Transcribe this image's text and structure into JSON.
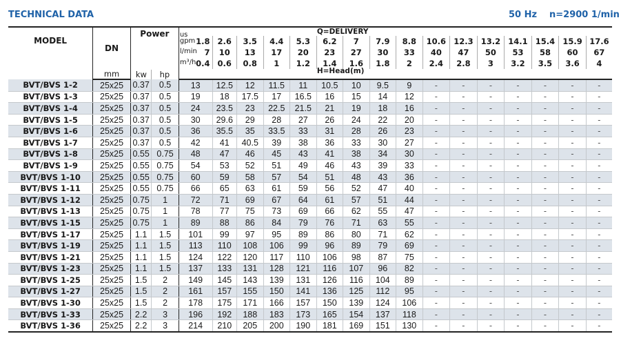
{
  "title": "TECHNICAL DATA",
  "frequency": "50 Hz",
  "speed": "n=2900 1/min",
  "header": {
    "model": "MODEL",
    "dn": "DN",
    "dn_unit": "mm",
    "power": "Power",
    "kw": "kw",
    "hp": "hp",
    "delivery": "Q=DELIVERY",
    "head": "H=Head(m)",
    "gpm_label": "us gpm",
    "lmin_label": "l/min",
    "m3h_label": "m³/h",
    "gpm": [
      "1.8",
      "2.6",
      "3.5",
      "4.4",
      "5.3",
      "6.2",
      "7",
      "7.9",
      "8.8",
      "10.6",
      "12.3",
      "13.2",
      "14.1",
      "15.4",
      "15.9",
      "17.6"
    ],
    "lmin": [
      "7",
      "10",
      "13",
      "17",
      "20",
      "23",
      "27",
      "30",
      "33",
      "40",
      "47",
      "50",
      "53",
      "58",
      "60",
      "67"
    ],
    "m3h": [
      "0.4",
      "0.6",
      "0.8",
      "1",
      "1.2",
      "1.4",
      "1.6",
      "1.8",
      "2",
      "2.4",
      "2.8",
      "3",
      "3.2",
      "3.5",
      "3.6",
      "4"
    ]
  },
  "rows": [
    {
      "model": "BVT/BVS 1-2",
      "dn": "25x25",
      "kw": "0.37",
      "hp": "0.5",
      "head": [
        "13",
        "12.5",
        "12",
        "11.5",
        "11",
        "10.5",
        "10",
        "9.5",
        "9",
        "-",
        "-",
        "-",
        "-",
        "-",
        "-",
        "-"
      ]
    },
    {
      "model": "BVT/BVS 1-3",
      "dn": "25x25",
      "kw": "0.37",
      "hp": "0.5",
      "head": [
        "19",
        "18",
        "17.5",
        "17",
        "16.5",
        "16",
        "15",
        "14",
        "12",
        "-",
        "-",
        "-",
        "-",
        "-",
        "-",
        "-"
      ]
    },
    {
      "model": "BVT/BVS 1-4",
      "dn": "25x25",
      "kw": "0.37",
      "hp": "0.5",
      "head": [
        "24",
        "23.5",
        "23",
        "22.5",
        "21.5",
        "21",
        "19",
        "18",
        "16",
        "-",
        "-",
        "-",
        "-",
        "-",
        "-",
        "-"
      ]
    },
    {
      "model": "BVT/BVS 1-5",
      "dn": "25x25",
      "kw": "0.37",
      "hp": "0.5",
      "head": [
        "30",
        "29.6",
        "29",
        "28",
        "27",
        "26",
        "24",
        "22",
        "20",
        "-",
        "-",
        "-",
        "-",
        "-",
        "-",
        "-"
      ]
    },
    {
      "model": "BVT/BVS 1-6",
      "dn": "25x25",
      "kw": "0.37",
      "hp": "0.5",
      "head": [
        "36",
        "35.5",
        "35",
        "33.5",
        "33",
        "31",
        "28",
        "26",
        "23",
        "-",
        "-",
        "-",
        "-",
        "-",
        "-",
        "-"
      ]
    },
    {
      "model": "BVT/BVS 1-7",
      "dn": "25x25",
      "kw": "0.37",
      "hp": "0.5",
      "head": [
        "42",
        "41",
        "40.5",
        "39",
        "38",
        "36",
        "33",
        "30",
        "27",
        "-",
        "-",
        "-",
        "-",
        "-",
        "-",
        "-"
      ]
    },
    {
      "model": "BVT/BVS 1-8",
      "dn": "25x25",
      "kw": "0.55",
      "hp": "0.75",
      "head": [
        "48",
        "47",
        "46",
        "45",
        "43",
        "41",
        "38",
        "34",
        "30",
        "-",
        "-",
        "-",
        "-",
        "-",
        "-",
        "-"
      ]
    },
    {
      "model": "BVT/BVS 1-9",
      "dn": "25x25",
      "kw": "0.55",
      "hp": "0.75",
      "head": [
        "54",
        "53",
        "52",
        "51",
        "49",
        "46",
        "43",
        "39",
        "33",
        "-",
        "-",
        "-",
        "-",
        "-",
        "-",
        "-"
      ]
    },
    {
      "model": "BVT/BVS 1-10",
      "dn": "25x25",
      "kw": "0.55",
      "hp": "0.75",
      "head": [
        "60",
        "59",
        "58",
        "57",
        "54",
        "51",
        "48",
        "43",
        "36",
        "-",
        "-",
        "-",
        "-",
        "-",
        "-",
        "-"
      ]
    },
    {
      "model": "BVT/BVS 1-11",
      "dn": "25x25",
      "kw": "0.55",
      "hp": "0.75",
      "head": [
        "66",
        "65",
        "63",
        "61",
        "59",
        "56",
        "52",
        "47",
        "40",
        "-",
        "-",
        "-",
        "-",
        "-",
        "-",
        "-"
      ]
    },
    {
      "model": "BVT/BVS 1-12",
      "dn": "25x25",
      "kw": "0.75",
      "hp": "1",
      "head": [
        "72",
        "71",
        "69",
        "67",
        "64",
        "61",
        "57",
        "51",
        "44",
        "-",
        "-",
        "-",
        "-",
        "-",
        "-",
        "-"
      ]
    },
    {
      "model": "BVT/BVS 1-13",
      "dn": "25x25",
      "kw": "0.75",
      "hp": "1",
      "head": [
        "78",
        "77",
        "75",
        "73",
        "69",
        "66",
        "62",
        "55",
        "47",
        "-",
        "-",
        "-",
        "-",
        "-",
        "-",
        "-"
      ]
    },
    {
      "model": "BVT/BVS 1-15",
      "dn": "25x25",
      "kw": "0.75",
      "hp": "1",
      "head": [
        "89",
        "88",
        "86",
        "84",
        "79",
        "76",
        "71",
        "63",
        "55",
        "-",
        "-",
        "-",
        "-",
        "-",
        "-",
        "-"
      ]
    },
    {
      "model": "BVT/BVS 1-17",
      "dn": "25x25",
      "kw": "1.1",
      "hp": "1.5",
      "head": [
        "101",
        "99",
        "97",
        "95",
        "89",
        "86",
        "80",
        "71",
        "62",
        "-",
        "-",
        "-",
        "-",
        "-",
        "-",
        "-"
      ]
    },
    {
      "model": "BVT/BVS 1-19",
      "dn": "25x25",
      "kw": "1.1",
      "hp": "1.5",
      "head": [
        "113",
        "110",
        "108",
        "106",
        "99",
        "96",
        "89",
        "79",
        "69",
        "-",
        "-",
        "-",
        "-",
        "-",
        "-",
        "-"
      ]
    },
    {
      "model": "BVT/BVS 1-21",
      "dn": "25x25",
      "kw": "1.1",
      "hp": "1.5",
      "head": [
        "124",
        "122",
        "120",
        "117",
        "110",
        "106",
        "98",
        "87",
        "75",
        "-",
        "-",
        "-",
        "-",
        "-",
        "-",
        "-"
      ]
    },
    {
      "model": "BVT/BVS 1-23",
      "dn": "25x25",
      "kw": "1.1",
      "hp": "1.5",
      "head": [
        "137",
        "133",
        "131",
        "128",
        "121",
        "116",
        "107",
        "96",
        "82",
        "-",
        "-",
        "-",
        "-",
        "-",
        "-",
        "-"
      ]
    },
    {
      "model": "BVT/BVS 1-25",
      "dn": "25x25",
      "kw": "1.5",
      "hp": "2",
      "head": [
        "149",
        "145",
        "143",
        "139",
        "131",
        "126",
        "116",
        "104",
        "89",
        "-",
        "-",
        "-",
        "-",
        "-",
        "-",
        "-"
      ]
    },
    {
      "model": "BVT/BVS 1-27",
      "dn": "25x25",
      "kw": "1.5",
      "hp": "2",
      "head": [
        "161",
        "157",
        "155",
        "150",
        "141",
        "136",
        "125",
        "112",
        "95",
        "-",
        "-",
        "-",
        "-",
        "-",
        "-",
        "-"
      ]
    },
    {
      "model": "BVT/BVS 1-30",
      "dn": "25x25",
      "kw": "1.5",
      "hp": "2",
      "head": [
        "178",
        "175",
        "171",
        "166",
        "157",
        "150",
        "139",
        "124",
        "106",
        "-",
        "-",
        "-",
        "-",
        "-",
        "-",
        "-"
      ]
    },
    {
      "model": "BVT/BVS 1-33",
      "dn": "25x25",
      "kw": "2.2",
      "hp": "3",
      "head": [
        "196",
        "192",
        "188",
        "183",
        "173",
        "165",
        "154",
        "137",
        "118",
        "-",
        "-",
        "-",
        "-",
        "-",
        "-",
        "-"
      ]
    },
    {
      "model": "BVT/BVS 1-36",
      "dn": "25x25",
      "kw": "2.2",
      "hp": "3",
      "head": [
        "214",
        "210",
        "205",
        "200",
        "190",
        "181",
        "169",
        "151",
        "130",
        "-",
        "-",
        "-",
        "-",
        "-",
        "-",
        "-"
      ]
    }
  ]
}
